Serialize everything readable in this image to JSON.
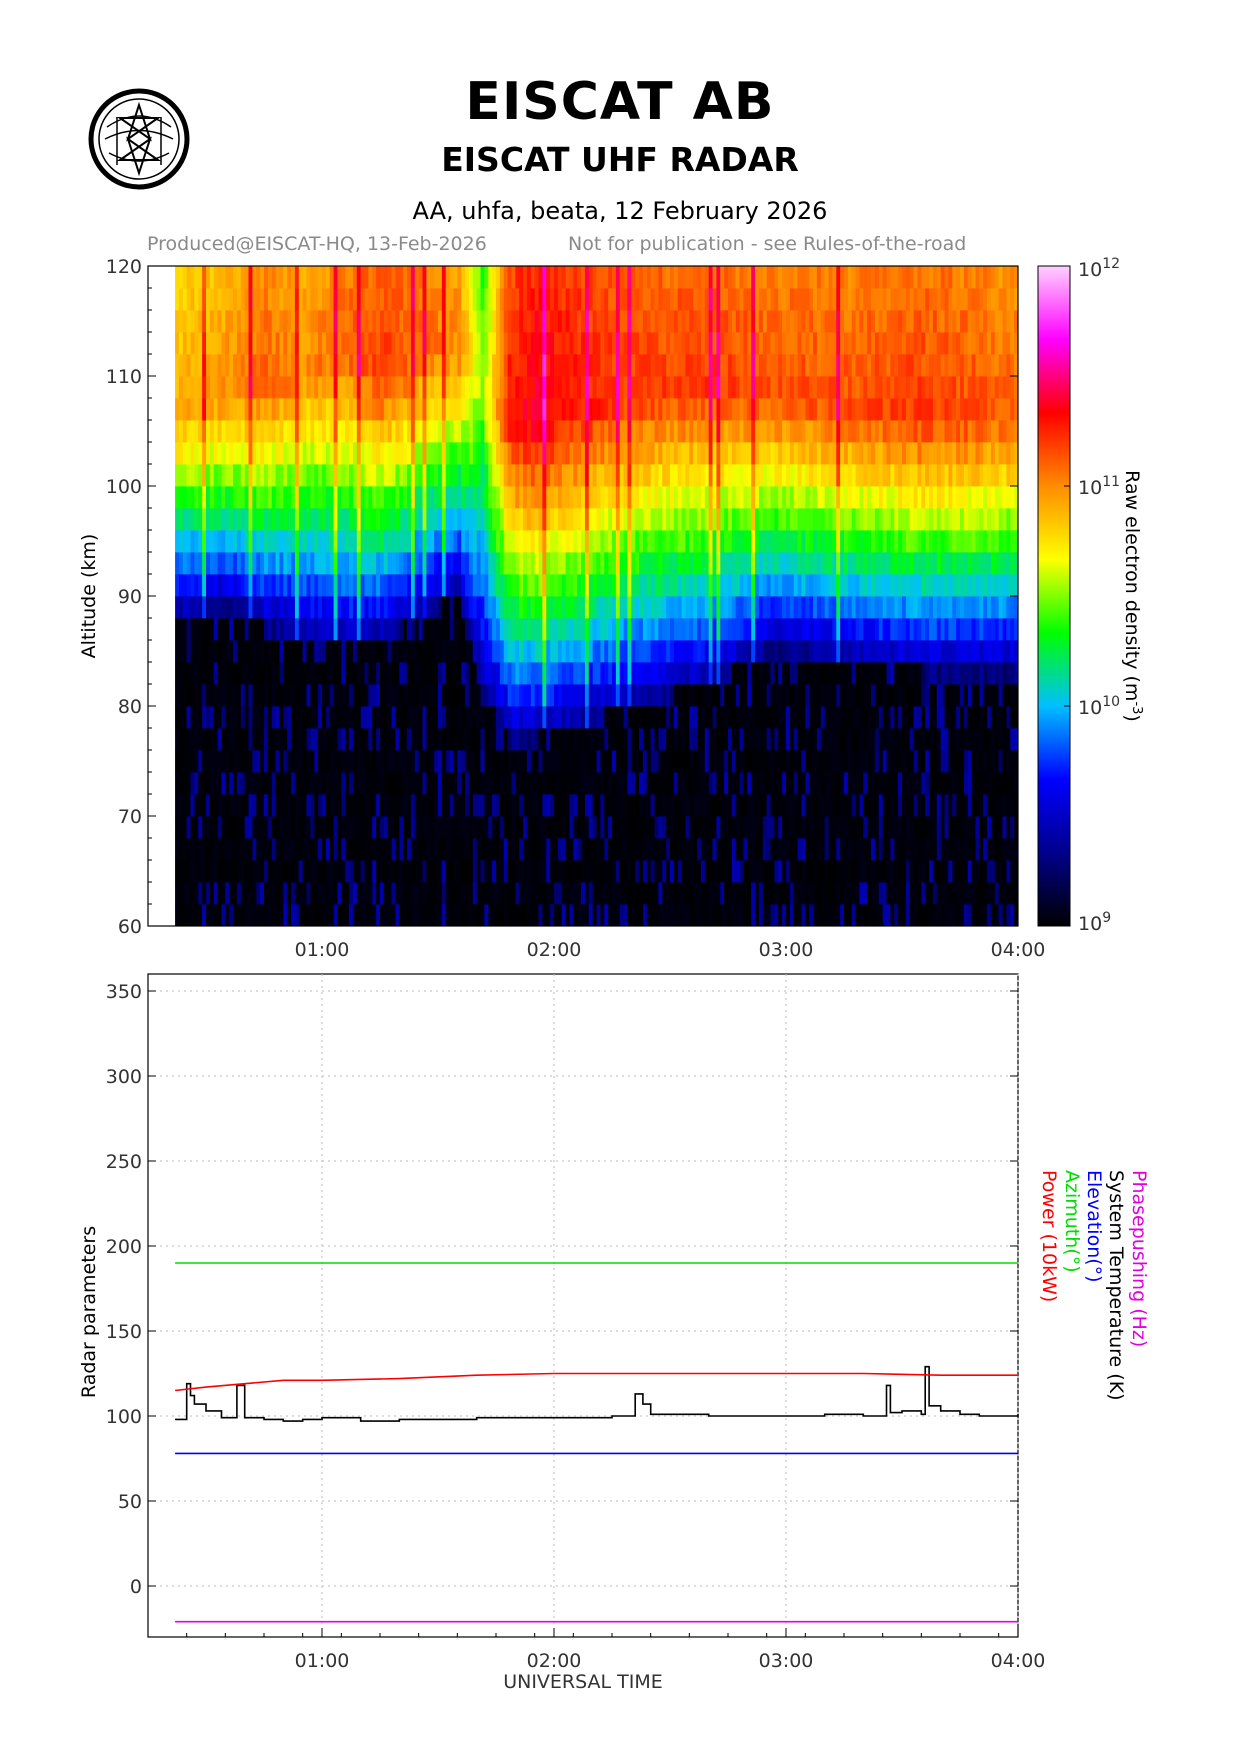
{
  "header": {
    "title": "EISCAT AB",
    "subtitle": "EISCAT UHF RADAR",
    "run_info": "AA, uhfa, beata, 12 February 2026",
    "produced": "Produced@EISCAT-HQ, 13-Feb-2026",
    "notice": "Not for publication - see Rules-of-the-road"
  },
  "chart_data": [
    {
      "type": "heatmap",
      "ylabel": "Altitude (km)",
      "ylim": [
        60,
        120
      ],
      "yticks": [
        "60",
        "70",
        "80",
        "90",
        "100",
        "110",
        "120"
      ],
      "xlim": [
        "00:15",
        "04:00"
      ],
      "xticks": [
        "01:00",
        "02:00",
        "03:00",
        "04:00"
      ],
      "data_start": "00:22",
      "colorbar": {
        "label": "Raw electron density (m",
        "label_sup": "-3",
        "label_end": ")",
        "scale": "log",
        "range": [
          1000000000.0,
          1000000000000.0
        ],
        "ticks": [
          {
            "base": "10",
            "exp": "9"
          },
          {
            "base": "10",
            "exp": "10"
          },
          {
            "base": "10",
            "exp": "11"
          },
          {
            "base": "10",
            "exp": "12"
          }
        ],
        "colors": [
          "#000000",
          "#00008b",
          "#0000ff",
          "#00bfff",
          "#00ff00",
          "#ffff00",
          "#ff8c00",
          "#ff0000",
          "#ff00ff",
          "#ffd0ff"
        ]
      },
      "profiles": [
        {
          "t": "00:22",
          "e_bottom_km": 91,
          "e_peak_km": 106,
          "peak_log": 10.9
        },
        {
          "t": "00:35",
          "e_bottom_km": 92,
          "e_peak_km": 108,
          "peak_log": 11.0
        },
        {
          "t": "00:45",
          "e_bottom_km": 90,
          "e_peak_km": 109,
          "peak_log": 11.1
        },
        {
          "t": "00:55",
          "e_bottom_km": 89,
          "e_peak_km": 110,
          "peak_log": 11.0
        },
        {
          "t": "01:05",
          "e_bottom_km": 88,
          "e_peak_km": 112,
          "peak_log": 11.1
        },
        {
          "t": "01:15",
          "e_bottom_km": 89,
          "e_peak_km": 110,
          "peak_log": 11.2
        },
        {
          "t": "01:25",
          "e_bottom_km": 91,
          "e_peak_km": 112,
          "peak_log": 11.1
        },
        {
          "t": "01:35",
          "e_bottom_km": 93,
          "e_peak_km": 112,
          "peak_log": 11.0
        },
        {
          "t": "01:41",
          "e_bottom_km": 84,
          "e_peak_km": 108,
          "peak_log": 10.5
        },
        {
          "t": "01:48",
          "e_bottom_km": 80,
          "e_peak_km": 106,
          "peak_log": 11.3
        },
        {
          "t": "01:55",
          "e_bottom_km": 80,
          "e_peak_km": 106,
          "peak_log": 11.4
        },
        {
          "t": "02:05",
          "e_bottom_km": 81,
          "e_peak_km": 107,
          "peak_log": 11.3
        },
        {
          "t": "02:20",
          "e_bottom_km": 83,
          "e_peak_km": 108,
          "peak_log": 11.2
        },
        {
          "t": "02:40",
          "e_bottom_km": 85,
          "e_peak_km": 109,
          "peak_log": 11.2
        },
        {
          "t": "02:55",
          "e_bottom_km": 88,
          "e_peak_km": 108,
          "peak_log": 11.15
        },
        {
          "t": "03:15",
          "e_bottom_km": 87,
          "e_peak_km": 107,
          "peak_log": 11.15
        },
        {
          "t": "03:35",
          "e_bottom_km": 86,
          "e_peak_km": 106,
          "peak_log": 11.2
        },
        {
          "t": "03:50",
          "e_bottom_km": 86,
          "e_peak_km": 106,
          "peak_log": 11.15
        },
        {
          "t": "04:00",
          "e_bottom_km": 86,
          "e_peak_km": 106,
          "peak_log": 11.1
        }
      ]
    },
    {
      "type": "line",
      "xlabel": "UNIVERSAL TIME",
      "ylabel": "Radar parameters",
      "ylim": [
        -30,
        360
      ],
      "yticks": [
        "0",
        "50",
        "100",
        "150",
        "200",
        "250",
        "300",
        "350"
      ],
      "xlim": [
        "00:15",
        "04:00"
      ],
      "xticks": [
        "01:00",
        "02:00",
        "03:00",
        "04:00"
      ],
      "grid": true,
      "legend_position": "right, rotated, outside plot",
      "series": [
        {
          "name": "Phasepushing (Hz)",
          "color": "#e000e0",
          "x": [
            "00:22",
            "04:00"
          ],
          "y": [
            -21,
            -21
          ]
        },
        {
          "name": "System Temperature (K)",
          "color": "#000000",
          "x": [
            "00:22",
            "00:24",
            "00:25",
            "00:26",
            "00:27",
            "00:30",
            "00:34",
            "00:37",
            "00:38",
            "00:40",
            "00:45",
            "00:50",
            "00:55",
            "01:00",
            "01:10",
            "01:20",
            "01:30",
            "01:40",
            "01:50",
            "02:00",
            "02:10",
            "02:15",
            "02:20",
            "02:21",
            "02:23",
            "02:25",
            "02:30",
            "02:40",
            "02:50",
            "03:00",
            "03:10",
            "03:20",
            "03:25",
            "03:26",
            "03:27",
            "03:30",
            "03:35",
            "03:36",
            "03:37",
            "03:40",
            "03:45",
            "03:50",
            "04:00"
          ],
          "y": [
            98,
            98,
            119,
            112,
            107,
            103,
            99,
            99,
            118,
            99,
            98,
            97,
            98,
            99,
            97,
            98,
            98,
            99,
            99,
            99,
            99,
            100,
            100,
            113,
            107,
            101,
            101,
            100,
            100,
            100,
            101,
            100,
            100,
            118,
            102,
            103,
            101,
            129,
            106,
            103,
            101,
            100,
            101
          ]
        },
        {
          "name": "Elevation(°)",
          "color": "#0000ff",
          "x": [
            "00:22",
            "04:00"
          ],
          "y": [
            78,
            78
          ]
        },
        {
          "name": "Azimuth(°)",
          "color": "#00dd00",
          "x": [
            "00:22",
            "04:00"
          ],
          "y": [
            190,
            190
          ]
        },
        {
          "name": "Power (10kW)",
          "color": "#ff0000",
          "x": [
            "00:22",
            "00:30",
            "00:40",
            "00:50",
            "01:00",
            "01:20",
            "01:40",
            "02:00",
            "02:20",
            "02:40",
            "03:00",
            "03:20",
            "03:40",
            "04:00"
          ],
          "y": [
            115,
            117,
            119,
            121,
            121,
            122,
            124,
            125,
            125,
            125,
            125,
            125,
            124,
            124
          ]
        }
      ]
    }
  ]
}
